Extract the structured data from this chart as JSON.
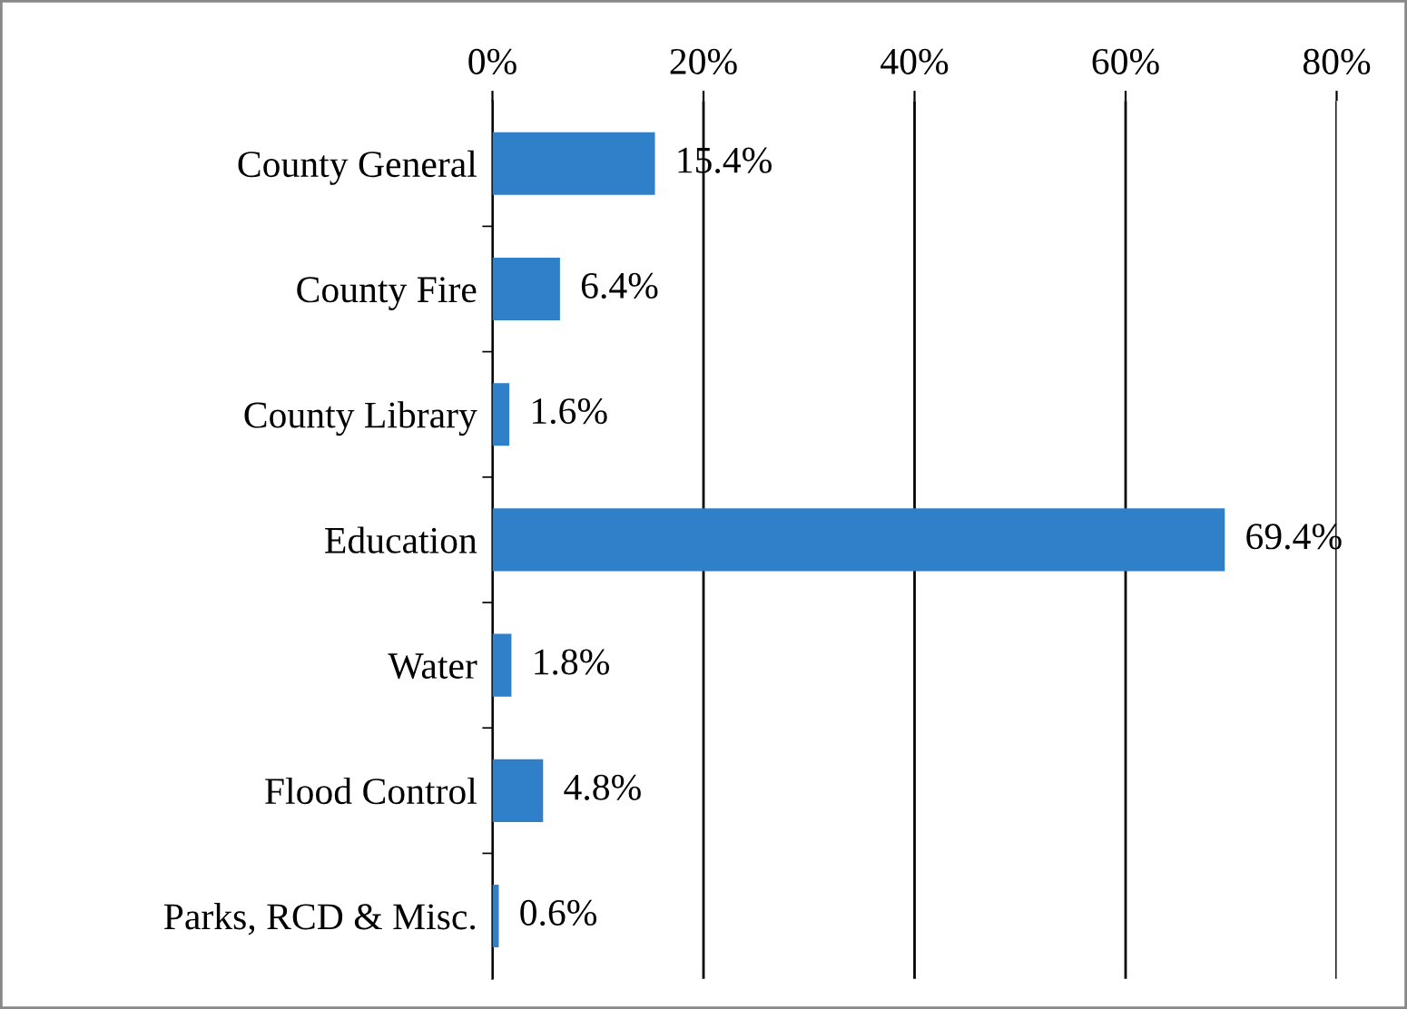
{
  "chart_data": {
    "type": "bar",
    "orientation": "horizontal",
    "categories": [
      "County General",
      "County Fire",
      "County Library",
      "Education",
      "Water",
      "Flood Control",
      "Parks, RCD & Misc."
    ],
    "values": [
      15.4,
      6.4,
      1.6,
      69.4,
      1.8,
      4.8,
      0.6
    ],
    "value_labels": [
      "15.4%",
      "6.4%",
      "1.6%",
      "69.4%",
      "1.8%",
      "4.8%",
      "0.6%"
    ],
    "color": "#2f80c8",
    "xlim": [
      0,
      80
    ],
    "xticks": [
      {
        "value": 0,
        "label": "0%"
      },
      {
        "value": 20,
        "label": "20%"
      },
      {
        "value": 40,
        "label": "40%"
      },
      {
        "value": 60,
        "label": "60%"
      },
      {
        "value": 80,
        "label": "80%"
      }
    ],
    "grid": "x"
  }
}
